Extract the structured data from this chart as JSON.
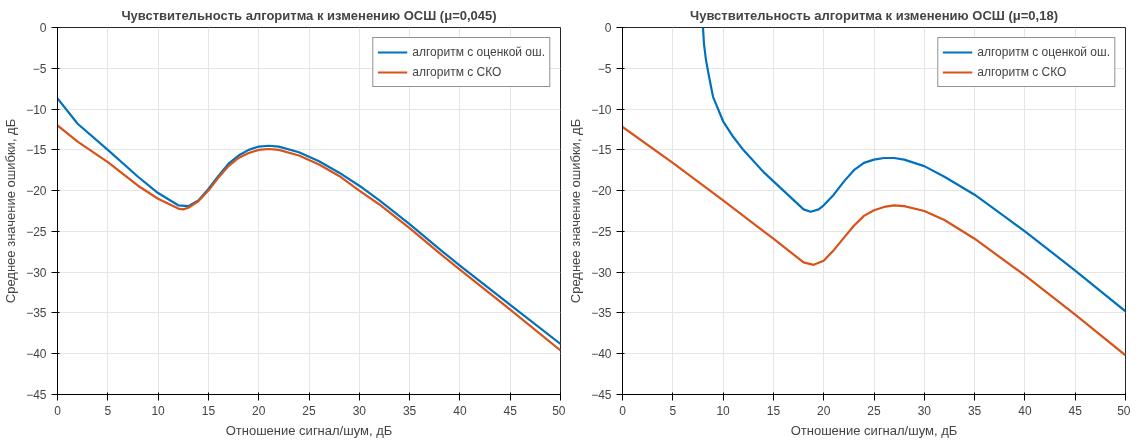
{
  "chart_data": [
    {
      "type": "line",
      "title": "Чувствительность алгоритма к изменению ОСШ (μ=0,045)",
      "xlabel": "Отношение сигнал/шум, дБ",
      "ylabel": "Среднее значение ошибки, дБ",
      "xlim": [
        0,
        50
      ],
      "ylim": [
        -45,
        0
      ],
      "xticks": [
        0,
        5,
        10,
        15,
        20,
        25,
        30,
        35,
        40,
        45,
        50
      ],
      "yticks": [
        0,
        -5,
        -10,
        -15,
        -20,
        -25,
        -30,
        -35,
        -40,
        -45
      ],
      "grid": true,
      "legend": "top right",
      "series": [
        {
          "name": "алгоритм с оценкой ош.",
          "color": "#0072bd",
          "x": [
            0,
            2,
            5,
            8,
            10,
            12,
            13,
            14,
            15,
            16,
            17,
            18,
            19,
            20,
            21,
            22,
            24,
            26,
            28,
            30,
            32,
            35,
            38,
            40,
            45,
            50
          ],
          "values": [
            -8.7,
            -11.8,
            -15,
            -18.3,
            -20.3,
            -21.8,
            -21.9,
            -21.2,
            -19.8,
            -18.2,
            -16.7,
            -15.7,
            -15,
            -14.6,
            -14.5,
            -14.6,
            -15.3,
            -16.4,
            -17.8,
            -19.4,
            -21.2,
            -24.1,
            -27.2,
            -29.2,
            -34,
            -38.8
          ]
        },
        {
          "name": "алгоритм с СКО",
          "color": "#d95319",
          "x": [
            0,
            2,
            5,
            8,
            10,
            12,
            12.5,
            13,
            14,
            15,
            16,
            17,
            18,
            19,
            20,
            21,
            22,
            24,
            26,
            28,
            30,
            32,
            35,
            38,
            40,
            45,
            50
          ],
          "values": [
            -12,
            -14,
            -16.5,
            -19.4,
            -21,
            -22.2,
            -22.3,
            -22.1,
            -21.3,
            -20,
            -18.4,
            -17,
            -16,
            -15.4,
            -15,
            -14.9,
            -15,
            -15.7,
            -16.8,
            -18.2,
            -20,
            -21.7,
            -24.6,
            -27.7,
            -29.7,
            -34.6,
            -39.6
          ]
        }
      ]
    },
    {
      "type": "line",
      "title": "Чувствительность алгоритма к изменению ОСШ (μ=0,18)",
      "xlabel": "Отношение сигнал/шум, дБ",
      "ylabel": "Среднее значение ошибки, дБ",
      "xlim": [
        0,
        50
      ],
      "ylim": [
        -45,
        0
      ],
      "xticks": [
        0,
        5,
        10,
        15,
        20,
        25,
        30,
        35,
        40,
        45,
        50
      ],
      "yticks": [
        0,
        -5,
        -10,
        -15,
        -20,
        -25,
        -30,
        -35,
        -40,
        -45
      ],
      "grid": true,
      "legend": "top right",
      "series": [
        {
          "name": "алгоритм с оценкой ош.",
          "color": "#0072bd",
          "x": [
            8,
            8.1,
            8.3,
            8.6,
            9,
            10,
            11,
            12,
            14,
            16,
            18,
            18.7,
            19.5,
            20,
            21,
            22,
            23,
            24,
            25,
            26,
            27,
            28,
            30,
            32,
            35,
            38,
            40,
            45,
            50
          ],
          "values": [
            0,
            -2,
            -4,
            -6,
            -8.5,
            -11.5,
            -13.4,
            -15,
            -17.7,
            -20,
            -22.3,
            -22.6,
            -22.3,
            -21.8,
            -20.5,
            -18.9,
            -17.5,
            -16.6,
            -16.2,
            -16,
            -16,
            -16.2,
            -17,
            -18.3,
            -20.5,
            -23.2,
            -25,
            -29.8,
            -34.8
          ]
        },
        {
          "name": "алгоритм с СКО",
          "color": "#d95319",
          "x": [
            0,
            5,
            10,
            15,
            18,
            19,
            20,
            21,
            22,
            23,
            24,
            25,
            26,
            27,
            28,
            30,
            32,
            35,
            40,
            45,
            50
          ],
          "values": [
            -12.2,
            -16.6,
            -21.2,
            -25.9,
            -28.8,
            -29.1,
            -28.6,
            -27.3,
            -25.8,
            -24.3,
            -23.1,
            -22.4,
            -22,
            -21.8,
            -21.9,
            -22.5,
            -23.6,
            -25.9,
            -30.4,
            -35.2,
            -40.2
          ]
        }
      ]
    }
  ]
}
